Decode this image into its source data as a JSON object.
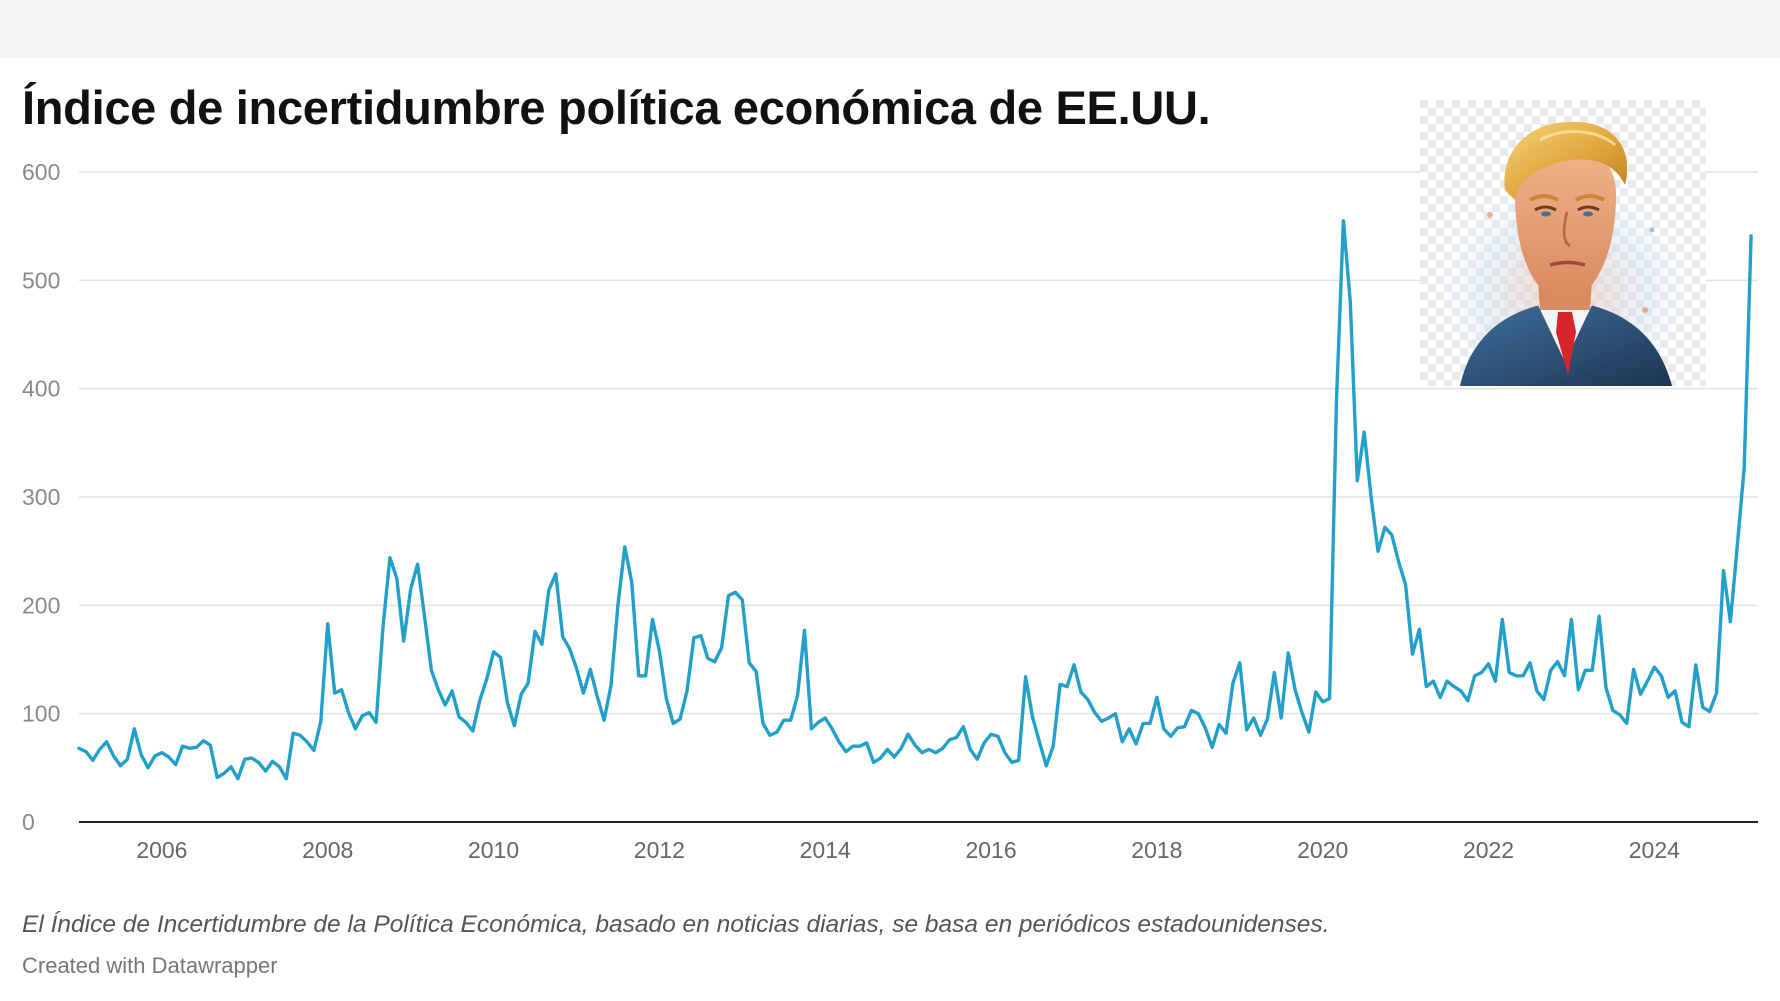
{
  "title": "Índice de incertidumbre política económica de EE.UU.",
  "caption": "El Índice de Incertidumbre de la Política Económica, basado en noticias diarias, se basa en periódicos estadounidenses.",
  "credit": "Created with Datawrapper",
  "colors": {
    "line": "#22a0c9",
    "grid": "#e2e2e2",
    "axis": "#222222",
    "tick_text": "#8a8a8a",
    "x_tick_text": "#666666"
  },
  "portrait": {
    "icon": "donald-trump-watercolor-portrait"
  },
  "chart_data": {
    "type": "line",
    "title": "Índice de incertidumbre política económica de EE.UU.",
    "xlabel": "",
    "ylabel": "",
    "xlim": [
      2005,
      2025.25
    ],
    "ylim": [
      0,
      600
    ],
    "yticks": [
      0,
      100,
      200,
      300,
      400,
      500,
      600
    ],
    "xticks": [
      2006,
      2008,
      2010,
      2012,
      2014,
      2016,
      2018,
      2020,
      2022,
      2024
    ],
    "grid": true,
    "series": [
      {
        "start_year": 2005,
        "step_months": 1,
        "values": [
          68,
          65,
          57,
          67,
          74,
          61,
          52,
          58,
          86,
          62,
          50,
          61,
          64,
          60,
          53,
          70,
          68,
          69,
          75,
          71,
          41,
          45,
          51,
          40,
          58,
          59,
          55,
          47,
          56,
          51,
          40,
          82,
          80,
          74,
          66,
          93,
          183,
          119,
          122,
          101,
          86,
          98,
          101,
          92,
          180,
          244,
          225,
          167,
          215,
          238,
          190,
          140,
          122,
          108,
          121,
          97,
          92,
          84,
          112,
          132,
          157,
          152,
          110,
          89,
          118,
          128,
          176,
          164,
          214,
          229,
          171,
          160,
          142,
          119,
          141,
          116,
          94,
          126,
          200,
          254,
          221,
          135,
          135,
          187,
          158,
          114,
          91,
          95,
          121,
          170,
          172,
          151,
          148,
          161,
          209,
          212,
          205,
          147,
          139,
          91,
          80,
          83,
          94,
          94,
          117,
          177,
          86,
          92,
          96,
          86,
          74,
          65,
          70,
          70,
          73,
          55,
          59,
          67,
          60,
          68,
          81,
          71,
          64,
          67,
          64,
          68,
          76,
          78,
          88,
          67,
          58,
          73,
          81,
          79,
          64,
          55,
          57,
          134,
          97,
          74,
          52,
          70,
          127,
          125,
          145,
          120,
          113,
          101,
          93,
          96,
          100,
          74,
          86,
          72,
          91,
          91,
          115,
          86,
          79,
          87,
          88,
          103,
          100,
          87,
          69,
          90,
          82,
          128,
          147,
          85,
          96,
          80,
          95,
          138,
          96,
          156,
          122,
          101,
          83,
          120,
          111,
          114,
          390,
          555,
          480,
          315,
          360,
          300,
          250,
          272,
          265,
          240,
          219,
          155,
          178,
          125,
          130,
          115,
          130,
          125,
          121,
          112,
          135,
          138,
          146,
          130,
          187,
          138,
          135,
          135,
          147,
          121,
          113,
          140,
          148,
          135,
          187,
          122,
          140,
          140,
          190,
          124,
          103,
          99,
          91,
          141,
          118,
          130,
          143,
          135,
          115,
          121,
          92,
          88,
          145,
          106,
          102,
          119,
          232,
          185,
          255,
          327,
          541
        ]
      }
    ]
  }
}
